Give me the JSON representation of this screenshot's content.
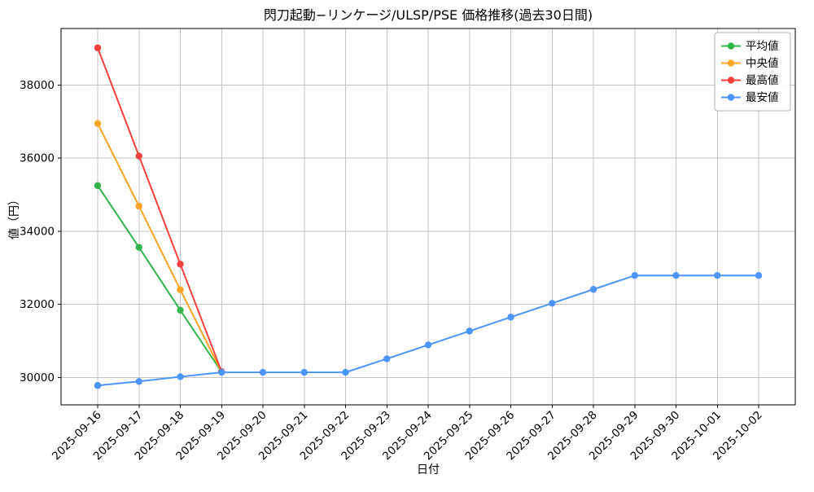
{
  "chart_data": {
    "type": "line",
    "title": "閃刀起動−リンケージ/ULSP/PSE 価格推移(過去30日間)",
    "xlabel": "日付",
    "ylabel": "値（円）",
    "x": [
      "2025-09-16",
      "2025-09-17",
      "2025-09-18",
      "2025-09-19",
      "2025-09-20",
      "2025-09-21",
      "2025-09-22",
      "2025-09-23",
      "2025-09-24",
      "2025-09-25",
      "2025-09-26",
      "2025-09-27",
      "2025-09-28",
      "2025-09-29",
      "2025-09-30",
      "2025-10-01",
      "2025-10-02"
    ],
    "ylim": [
      29250,
      39550
    ],
    "yticks": [
      30000,
      32000,
      34000,
      36000,
      38000
    ],
    "grid": true,
    "legend_position": "upper right",
    "series": [
      {
        "id": "average",
        "name": "平均値",
        "color": "#33b34c",
        "values": [
          35250,
          33560,
          31840,
          30150,
          null,
          null,
          null,
          null,
          null,
          null,
          null,
          null,
          null,
          null,
          null,
          null,
          null
        ]
      },
      {
        "id": "median",
        "name": "中央値",
        "color": "#ffa424",
        "values": [
          36950,
          34690,
          32400,
          30150,
          null,
          null,
          null,
          null,
          null,
          null,
          null,
          null,
          null,
          null,
          null,
          null,
          null
        ]
      },
      {
        "id": "max",
        "name": "最高値",
        "color": "#f5413d",
        "values": [
          39020,
          36060,
          33100,
          30160,
          null,
          null,
          null,
          null,
          null,
          null,
          null,
          null,
          null,
          null,
          null,
          null,
          null
        ]
      },
      {
        "id": "min",
        "name": "最安値",
        "color": "#4d94ff",
        "values": [
          29780,
          29890,
          30020,
          30140,
          30140,
          30140,
          30140,
          30510,
          30890,
          31270,
          31650,
          32030,
          32410,
          32790,
          32790,
          32790,
          32790
        ]
      }
    ]
  }
}
